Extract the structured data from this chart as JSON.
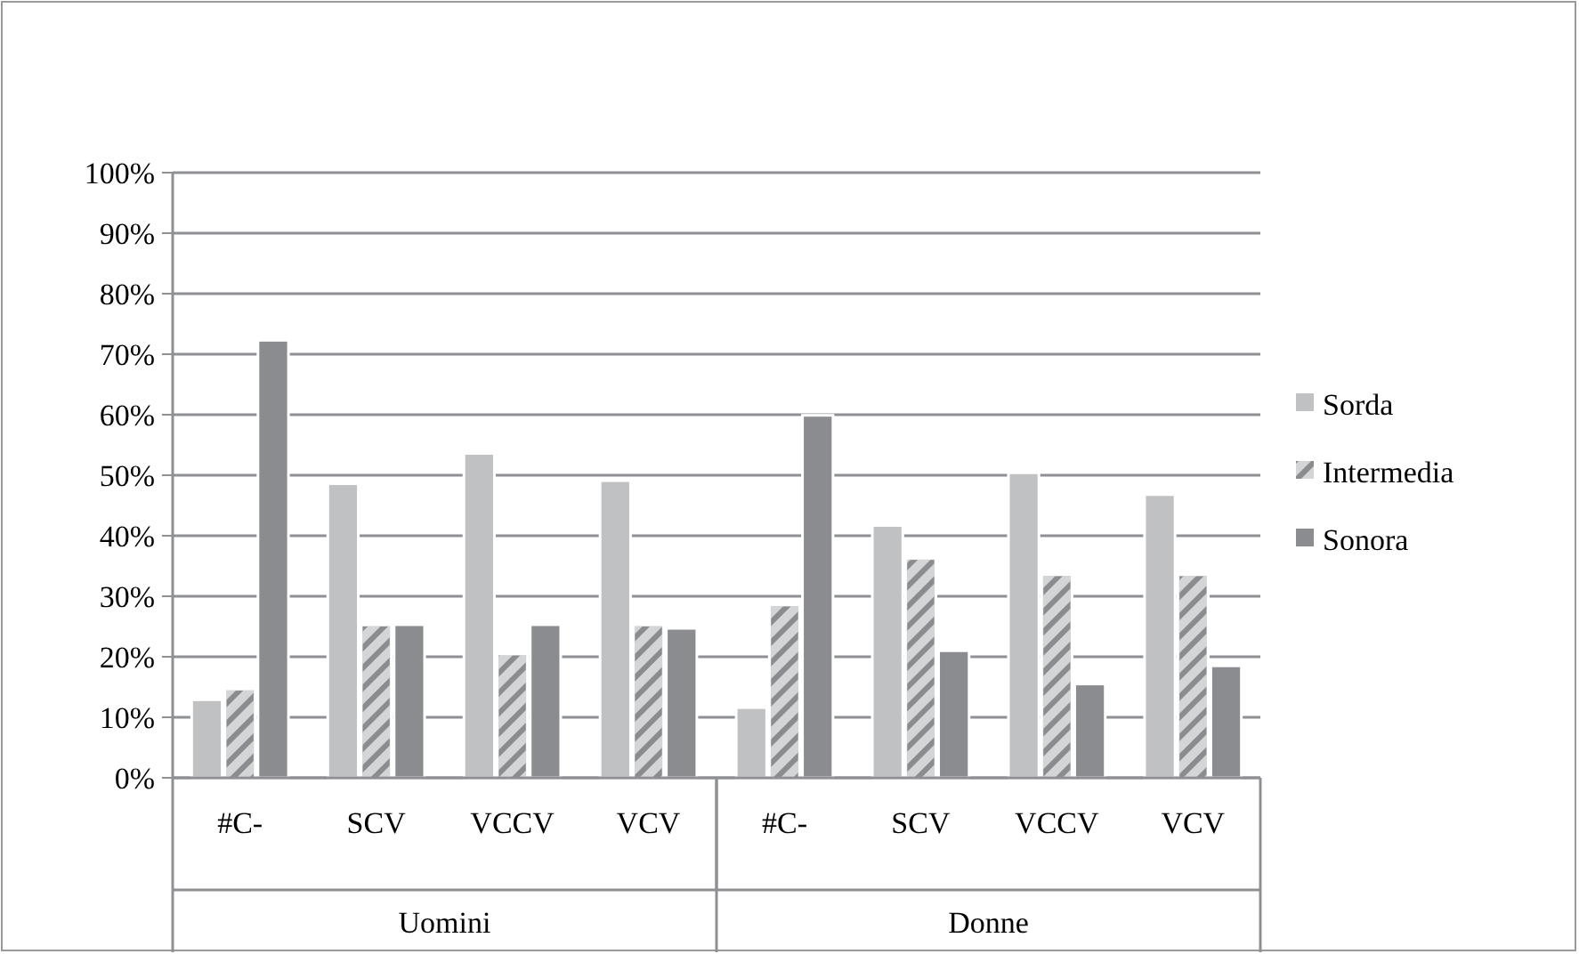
{
  "chart_data": {
    "type": "bar",
    "categories": [
      "#C-",
      "SCV",
      "VCCV",
      "VCV",
      "#C-",
      "SCV",
      "VCCV",
      "VCV"
    ],
    "annotations": [
      "Uomini",
      "Donne"
    ],
    "series": [
      {
        "name": "Sorda",
        "color": "#bfc1c3",
        "values": [
          12.9,
          48.6,
          53.6,
          49.1,
          11.6,
          41.7,
          50.4,
          46.8
        ]
      },
      {
        "name": "Intermedia",
        "color": "#d4d5d7",
        "values": [
          14.7,
          25.3,
          20.5,
          25.3,
          28.6,
          36.3,
          33.6,
          33.6
        ]
      },
      {
        "name": "Sonora",
        "color": "#8a8c8f",
        "values": [
          72.3,
          25.3,
          25.3,
          24.7,
          59.9,
          21.0,
          15.5,
          18.5
        ]
      }
    ],
    "ylim": [
      0,
      100
    ],
    "yticks": [
      {
        "value": 0,
        "label": "0%"
      },
      {
        "value": 10,
        "label": "10%"
      },
      {
        "value": 20,
        "label": "20%"
      },
      {
        "value": 30,
        "label": "30%"
      },
      {
        "value": 40,
        "label": "40%"
      },
      {
        "value": 50,
        "label": "50%"
      },
      {
        "value": 60,
        "label": "60%"
      },
      {
        "value": 70,
        "label": "70%"
      },
      {
        "value": 80,
        "label": "80%"
      },
      {
        "value": 90,
        "label": "90%"
      },
      {
        "value": 100,
        "label": "100%"
      }
    ],
    "grid": "y",
    "legend": "right"
  }
}
